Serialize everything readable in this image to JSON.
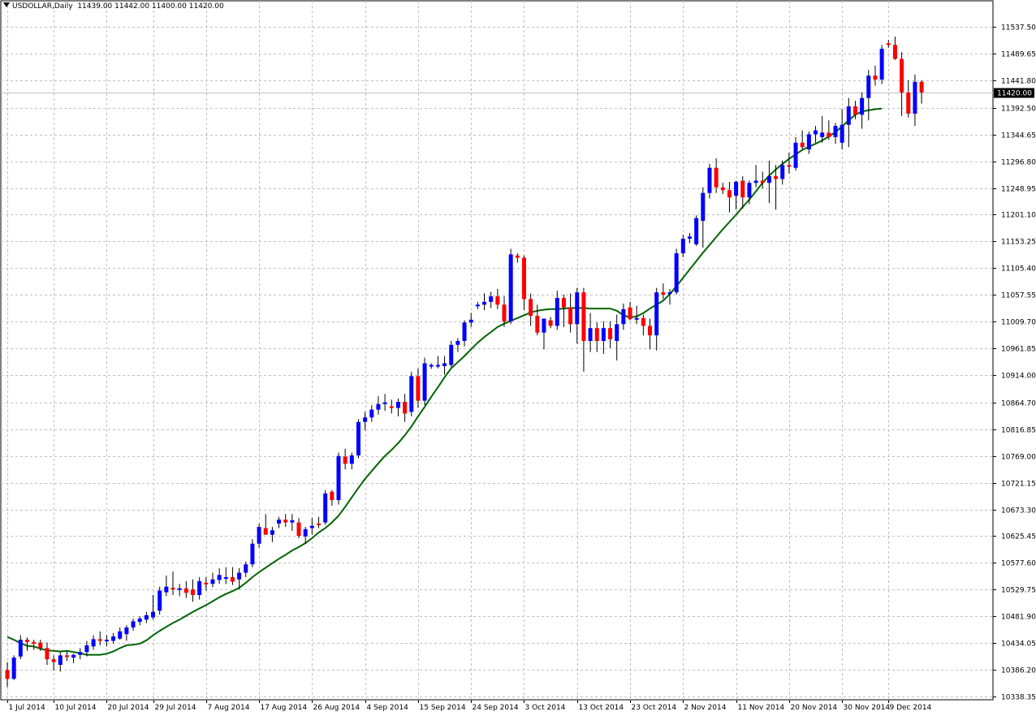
{
  "header": {
    "symbol": "USDOLLAR,Daily",
    "ohlc": "11439.00 11442.00 11400.00 11420.00"
  },
  "chart_data": {
    "type": "candlestick",
    "title": "USDOLLAR,Daily",
    "ylim": [
      10338.35,
      11561.45
    ],
    "grid": true,
    "colors": {
      "bull": "#0000ff",
      "bear": "#ff0000",
      "wick": "#000000",
      "ma": "#006400",
      "grid": "#c0c0c0"
    },
    "current_price": 11420.0,
    "current_price_label": "11420.00",
    "y_ticks": [
      {
        "value": 11537.5,
        "label": "11537.50"
      },
      {
        "value": 11489.65,
        "label": "11489.65"
      },
      {
        "value": 11441.8,
        "label": "11441.80"
      },
      {
        "value": 11392.5,
        "label": "11392.50"
      },
      {
        "value": 11344.65,
        "label": "11344.65"
      },
      {
        "value": 11296.8,
        "label": "11296.80"
      },
      {
        "value": 11248.95,
        "label": "11248.95"
      },
      {
        "value": 11201.1,
        "label": "11201.10"
      },
      {
        "value": 11153.25,
        "label": "11153.25"
      },
      {
        "value": 11105.4,
        "label": "11105.40"
      },
      {
        "value": 11057.55,
        "label": "11057.55"
      },
      {
        "value": 11009.7,
        "label": "11009.70"
      },
      {
        "value": 10961.85,
        "label": "10961.85"
      },
      {
        "value": 10914.0,
        "label": "10914.00"
      },
      {
        "value": 10864.7,
        "label": "10864.70"
      },
      {
        "value": 10816.85,
        "label": "10816.85"
      },
      {
        "value": 10769.0,
        "label": "10769.00"
      },
      {
        "value": 10721.15,
        "label": "10721.15"
      },
      {
        "value": 10673.3,
        "label": "10673.30"
      },
      {
        "value": 10625.45,
        "label": "10625.45"
      },
      {
        "value": 10577.6,
        "label": "10577.60"
      },
      {
        "value": 10529.75,
        "label": "10529.75"
      },
      {
        "value": 10481.9,
        "label": "10481.90"
      },
      {
        "value": 10434.05,
        "label": "10434.05"
      },
      {
        "value": 10386.2,
        "label": "10386.20"
      },
      {
        "value": 10338.35,
        "label": "10338.35"
      }
    ],
    "x_ticks": [
      {
        "index": 0,
        "label": "1 Jul 2014"
      },
      {
        "index": 7,
        "label": "10 Jul 2014"
      },
      {
        "index": 15,
        "label": "20 Jul 2014"
      },
      {
        "index": 22,
        "label": "29 Jul 2014"
      },
      {
        "index": 30,
        "label": "7 Aug 2014"
      },
      {
        "index": 38,
        "label": "17 Aug 2014"
      },
      {
        "index": 46,
        "label": "26 Aug 2014"
      },
      {
        "index": 54,
        "label": "4 Sep 2014"
      },
      {
        "index": 62,
        "label": "15 Sep 2014"
      },
      {
        "index": 70,
        "label": "24 Sep 2014"
      },
      {
        "index": 78,
        "label": "3 Oct 2014"
      },
      {
        "index": 86,
        "label": "13 Oct 2014"
      },
      {
        "index": 94,
        "label": "23 Oct 2014"
      },
      {
        "index": 102,
        "label": "2 Nov 2014"
      },
      {
        "index": 110,
        "label": "11 Nov 2014"
      },
      {
        "index": 118,
        "label": "20 Nov 2014"
      },
      {
        "index": 126,
        "label": "30 Nov 2014"
      },
      {
        "index": 133,
        "label": "9 Dec 2014"
      }
    ],
    "candles": [
      [
        10386,
        10400,
        10355,
        10370
      ],
      [
        10370,
        10412,
        10368,
        10408
      ],
      [
        10410,
        10448,
        10405,
        10440
      ],
      [
        10440,
        10444,
        10420,
        10436
      ],
      [
        10436,
        10440,
        10422,
        10433
      ],
      [
        10435,
        10440,
        10420,
        10425
      ],
      [
        10425,
        10435,
        10395,
        10405
      ],
      [
        10405,
        10412,
        10385,
        10400
      ],
      [
        10395,
        10418,
        10383,
        10412
      ],
      [
        10412,
        10420,
        10402,
        10410
      ],
      [
        10408,
        10415,
        10398,
        10413
      ],
      [
        10413,
        10425,
        10405,
        10418
      ],
      [
        10418,
        10438,
        10410,
        10430
      ],
      [
        10428,
        10448,
        10422,
        10441
      ],
      [
        10441,
        10455,
        10430,
        10438
      ],
      [
        10438,
        10448,
        10428,
        10440
      ],
      [
        10438,
        10452,
        10433,
        10446
      ],
      [
        10442,
        10462,
        10440,
        10455
      ],
      [
        10450,
        10466,
        10438,
        10462
      ],
      [
        10462,
        10478,
        10456,
        10473
      ],
      [
        10472,
        10482,
        10466,
        10478
      ],
      [
        10476,
        10490,
        10470,
        10484
      ],
      [
        10480,
        10520,
        10476,
        10490
      ],
      [
        10492,
        10535,
        10485,
        10528
      ],
      [
        10525,
        10555,
        10518,
        10535
      ],
      [
        10533,
        10562,
        10520,
        10532
      ],
      [
        10530,
        10540,
        10518,
        10532
      ],
      [
        10532,
        10545,
        10515,
        10524
      ],
      [
        10530,
        10548,
        10508,
        10520
      ],
      [
        10520,
        10552,
        10512,
        10545
      ],
      [
        10542,
        10552,
        10528,
        10540
      ],
      [
        10540,
        10560,
        10534,
        10548
      ],
      [
        10547,
        10568,
        10540,
        10556
      ],
      [
        10552,
        10570,
        10540,
        10552
      ],
      [
        10552,
        10570,
        10538,
        10544
      ],
      [
        10548,
        10568,
        10530,
        10560
      ],
      [
        10560,
        10580,
        10552,
        10575
      ],
      [
        10575,
        10620,
        10570,
        10612
      ],
      [
        10612,
        10648,
        10605,
        10642
      ],
      [
        10640,
        10665,
        10630,
        10628
      ],
      [
        10628,
        10642,
        10615,
        10636
      ],
      [
        10648,
        10660,
        10640,
        10655
      ],
      [
        10655,
        10665,
        10642,
        10650
      ],
      [
        10650,
        10665,
        10635,
        10654
      ],
      [
        10650,
        10658,
        10622,
        10626
      ],
      [
        10625,
        10642,
        10612,
        10638
      ],
      [
        10640,
        10658,
        10628,
        10644
      ],
      [
        10648,
        10660,
        10640,
        10646
      ],
      [
        10650,
        10708,
        10646,
        10702
      ],
      [
        10705,
        10708,
        10680,
        10690
      ],
      [
        10690,
        10775,
        10682,
        10769
      ],
      [
        10768,
        10782,
        10745,
        10755
      ],
      [
        10755,
        10775,
        10745,
        10770
      ],
      [
        10770,
        10835,
        10765,
        10830
      ],
      [
        10830,
        10848,
        10815,
        10838
      ],
      [
        10838,
        10860,
        10830,
        10852
      ],
      [
        10852,
        10876,
        10843,
        10862
      ],
      [
        10862,
        10880,
        10850,
        10865
      ],
      [
        10858,
        10870,
        10845,
        10855
      ],
      [
        10855,
        10872,
        10840,
        10866
      ],
      [
        10866,
        10880,
        10830,
        10845
      ],
      [
        10848,
        10920,
        10840,
        10912
      ],
      [
        10912,
        10926,
        10855,
        10868
      ],
      [
        10868,
        10945,
        10860,
        10935
      ],
      [
        10932,
        10935,
        10925,
        10932
      ],
      [
        10932,
        10948,
        10926,
        10932
      ],
      [
        10930,
        10948,
        10915,
        10935
      ],
      [
        10932,
        10975,
        10928,
        10968
      ],
      [
        10968,
        10980,
        10955,
        10975
      ],
      [
        10975,
        11012,
        10965,
        11008
      ],
      [
        11008,
        11025,
        11000,
        11013
      ],
      [
        11038,
        11045,
        11032,
        11040
      ],
      [
        11040,
        11060,
        11030,
        11045
      ],
      [
        11045,
        11063,
        11034,
        11055
      ],
      [
        11055,
        11068,
        11032,
        11040
      ],
      [
        11040,
        11055,
        11000,
        11010
      ],
      [
        11010,
        11140,
        11005,
        11130
      ],
      [
        11128,
        11132,
        11115,
        11124
      ],
      [
        11124,
        11128,
        11030,
        11050
      ],
      [
        11050,
        11060,
        11002,
        11020
      ],
      [
        11020,
        11040,
        10985,
        10990
      ],
      [
        10990,
        11010,
        10960,
        11015
      ],
      [
        11012,
        11018,
        10998,
        11002
      ],
      [
        11002,
        11065,
        10995,
        11052
      ],
      [
        11052,
        11058,
        11000,
        11035
      ],
      [
        11035,
        11060,
        10990,
        11005
      ],
      [
        11005,
        11070,
        10970,
        11062
      ],
      [
        11062,
        11070,
        10920,
        10975
      ],
      [
        10975,
        11025,
        10955,
        10998
      ],
      [
        10998,
        11008,
        10955,
        10975
      ],
      [
        10975,
        11010,
        10952,
        10998
      ],
      [
        10998,
        11010,
        10962,
        10978
      ],
      [
        10975,
        11022,
        10940,
        11005
      ],
      [
        11005,
        11042,
        10995,
        11032
      ],
      [
        11035,
        11045,
        11012,
        11014
      ],
      [
        11014,
        11038,
        11005,
        11016
      ],
      [
        11016,
        11022,
        10985,
        11002
      ],
      [
        11002,
        11015,
        10960,
        10985
      ],
      [
        10985,
        11070,
        10958,
        11062
      ],
      [
        11062,
        11078,
        11050,
        11058
      ],
      [
        11060,
        11068,
        11040,
        11062
      ],
      [
        11062,
        11140,
        11058,
        11132
      ],
      [
        11132,
        11165,
        11125,
        11158
      ],
      [
        11158,
        11168,
        11150,
        11162
      ],
      [
        11148,
        11200,
        11145,
        11195
      ],
      [
        11190,
        11250,
        11142,
        11240
      ],
      [
        11240,
        11292,
        11230,
        11285
      ],
      [
        11285,
        11302,
        11240,
        11250
      ],
      [
        11250,
        11258,
        11238,
        11245
      ],
      [
        11245,
        11260,
        11205,
        11232
      ],
      [
        11235,
        11262,
        11210,
        11260
      ],
      [
        11262,
        11270,
        11212,
        11232
      ],
      [
        11232,
        11262,
        11220,
        11258
      ],
      [
        11258,
        11290,
        11250,
        11262
      ],
      [
        11262,
        11278,
        11248,
        11258
      ],
      [
        11258,
        11298,
        11222,
        11270
      ],
      [
        11270,
        11290,
        11210,
        11265
      ],
      [
        11265,
        11298,
        11255,
        11290
      ],
      [
        11290,
        11312,
        11275,
        11288
      ],
      [
        11285,
        11340,
        11280,
        11330
      ],
      [
        11330,
        11352,
        11318,
        11322
      ],
      [
        11318,
        11350,
        11310,
        11345
      ],
      [
        11345,
        11360,
        11330,
        11352
      ],
      [
        11340,
        11378,
        11330,
        11348
      ],
      [
        11348,
        11370,
        11335,
        11340
      ],
      [
        11340,
        11365,
        11328,
        11360
      ],
      [
        11330,
        11390,
        11318,
        11362
      ],
      [
        11362,
        11410,
        11322,
        11395
      ],
      [
        11395,
        11405,
        11372,
        11380
      ],
      [
        11380,
        11420,
        11355,
        11410
      ],
      [
        11410,
        11460,
        11370,
        11450
      ],
      [
        11450,
        11468,
        11432,
        11443
      ],
      [
        11443,
        11505,
        11435,
        11498
      ],
      [
        11508,
        11514,
        11500,
        11505
      ],
      [
        11505,
        11520,
        11478,
        11480
      ],
      [
        11480,
        11492,
        11378,
        11420
      ],
      [
        11420,
        11442,
        11375,
        11382
      ],
      [
        11382,
        11452,
        11360,
        11439
      ],
      [
        11439,
        11442,
        11400,
        11420
      ]
    ],
    "ma": [
      10445,
      10440,
      10434,
      10429,
      10428,
      10424,
      10421,
      10420,
      10419,
      10420,
      10418,
      10416,
      10413,
      10413,
      10413,
      10415,
      10419,
      10425,
      10430,
      10431,
      10433,
      10439,
      10448,
      10456,
      10463,
      10470,
      10476,
      10483,
      10490,
      10496,
      10502,
      10509,
      10516,
      10522,
      10527,
      10533,
      10542,
      10552,
      10561,
      10569,
      10577,
      10585,
      10592,
      10600,
      10606,
      10613,
      10622,
      10632,
      10640,
      10650,
      10662,
      10678,
      10695,
      10712,
      10728,
      10742,
      10756,
      10769,
      10780,
      10792,
      10806,
      10822,
      10840,
      10857,
      10875,
      10892,
      10910,
      10926,
      10937,
      10948,
      10960,
      10972,
      10982,
      10991,
      11000,
      11006,
      11011,
      11016,
      11021,
      11026,
      11029,
      11031,
      11032,
      11032,
      11033,
      11034,
      11034,
      11034,
      11033,
      11033,
      11033,
      11033,
      11029,
      11021,
      11017,
      11019,
      11025,
      11033,
      11040,
      11047,
      11059,
      11073,
      11088,
      11103,
      11118,
      11133,
      11147,
      11161,
      11175,
      11188,
      11201,
      11215,
      11228,
      11243,
      11258,
      11271,
      11282,
      11292,
      11301,
      11309,
      11317,
      11323,
      11328,
      11334,
      11341,
      11349,
      11359,
      11370,
      11380,
      11386,
      11388,
      11390,
      11391
    ]
  }
}
